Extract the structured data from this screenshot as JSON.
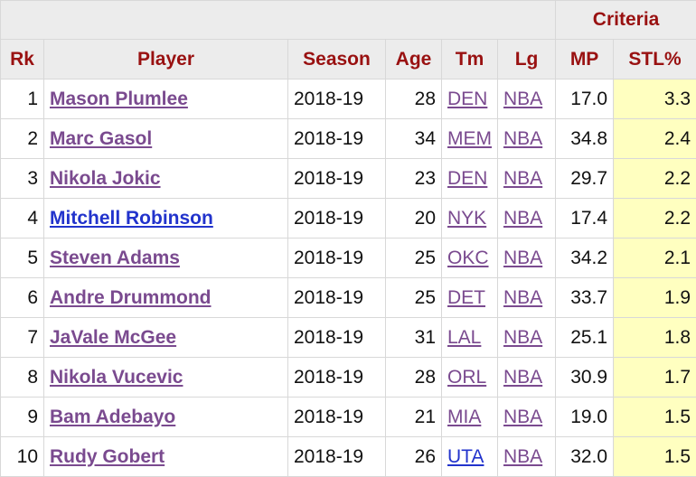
{
  "table": {
    "group_header": "Criteria",
    "columns": [
      "Rk",
      "Player",
      "Season",
      "Age",
      "Tm",
      "Lg",
      "MP",
      "STL%"
    ],
    "rows": [
      {
        "rk": "1",
        "player": "Mason Plumlee",
        "season": "2018-19",
        "age": "28",
        "tm": "DEN",
        "lg": "NBA",
        "mp": "17.0",
        "stl": "3.3",
        "player_color": "#7a4a8f",
        "tm_color": "#7a4a8f"
      },
      {
        "rk": "2",
        "player": "Marc Gasol",
        "season": "2018-19",
        "age": "34",
        "tm": "MEM",
        "lg": "NBA",
        "mp": "34.8",
        "stl": "2.4",
        "player_color": "#7a4a8f",
        "tm_color": "#7a4a8f"
      },
      {
        "rk": "3",
        "player": "Nikola Jokic",
        "season": "2018-19",
        "age": "23",
        "tm": "DEN",
        "lg": "NBA",
        "mp": "29.7",
        "stl": "2.2",
        "player_color": "#7a4a8f",
        "tm_color": "#7a4a8f"
      },
      {
        "rk": "4",
        "player": "Mitchell Robinson",
        "season": "2018-19",
        "age": "20",
        "tm": "NYK",
        "lg": "NBA",
        "mp": "17.4",
        "stl": "2.2",
        "player_color": "#2233cc",
        "tm_color": "#7a4a8f"
      },
      {
        "rk": "5",
        "player": "Steven Adams",
        "season": "2018-19",
        "age": "25",
        "tm": "OKC",
        "lg": "NBA",
        "mp": "34.2",
        "stl": "2.1",
        "player_color": "#7a4a8f",
        "tm_color": "#7a4a8f"
      },
      {
        "rk": "6",
        "player": "Andre Drummond",
        "season": "2018-19",
        "age": "25",
        "tm": "DET",
        "lg": "NBA",
        "mp": "33.7",
        "stl": "1.9",
        "player_color": "#7a4a8f",
        "tm_color": "#7a4a8f"
      },
      {
        "rk": "7",
        "player": "JaVale McGee",
        "season": "2018-19",
        "age": "31",
        "tm": "LAL",
        "lg": "NBA",
        "mp": "25.1",
        "stl": "1.8",
        "player_color": "#7a4a8f",
        "tm_color": "#7a4a8f"
      },
      {
        "rk": "8",
        "player": "Nikola Vucevic",
        "season": "2018-19",
        "age": "28",
        "tm": "ORL",
        "lg": "NBA",
        "mp": "30.9",
        "stl": "1.7",
        "player_color": "#7a4a8f",
        "tm_color": "#7a4a8f"
      },
      {
        "rk": "9",
        "player": "Bam Adebayo",
        "season": "2018-19",
        "age": "21",
        "tm": "MIA",
        "lg": "NBA",
        "mp": "19.0",
        "stl": "1.5",
        "player_color": "#7a4a8f",
        "tm_color": "#7a4a8f"
      },
      {
        "rk": "10",
        "player": "Rudy Gobert",
        "season": "2018-19",
        "age": "26",
        "tm": "UTA",
        "lg": "NBA",
        "mp": "32.0",
        "stl": "1.5",
        "player_color": "#7a4a8f",
        "tm_color": "#2233cc"
      }
    ]
  }
}
